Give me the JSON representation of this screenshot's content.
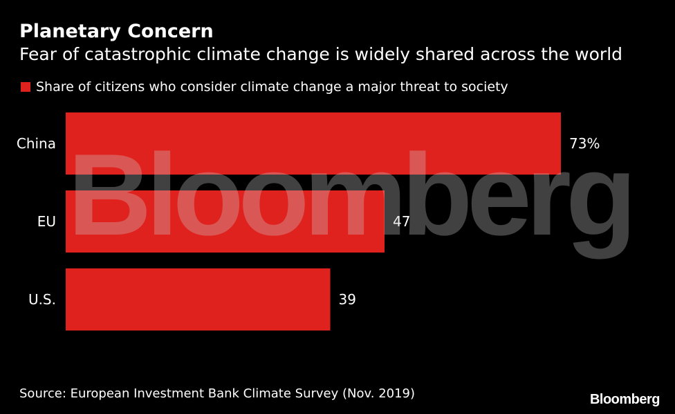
{
  "title": "Planetary Concern",
  "subtitle": "Fear of catastrophic climate change is widely shared across the world",
  "legend": {
    "label": "Share of citizens who consider climate change a major threat to society",
    "color": "#e0221e"
  },
  "source": "Source: European Investment Bank Climate Survey (Nov. 2019)",
  "logo_text": "Bloomberg",
  "watermark_text": "Bloomberg",
  "chart_data": {
    "type": "bar",
    "orientation": "horizontal",
    "title": "Planetary Concern",
    "subtitle": "Fear of catastrophic climate change is widely shared across the world",
    "categories": [
      "China",
      "EU",
      "U.S."
    ],
    "series": [
      {
        "name": "Share of citizens who consider climate change a major threat to society",
        "values": [
          73,
          47,
          39
        ],
        "labels": [
          "73%",
          "47",
          "39"
        ],
        "color": "#e0221e"
      }
    ],
    "xlabel": "",
    "ylabel": "",
    "xlim": [
      0,
      100
    ],
    "grid": false,
    "legend_position": "top-left"
  }
}
